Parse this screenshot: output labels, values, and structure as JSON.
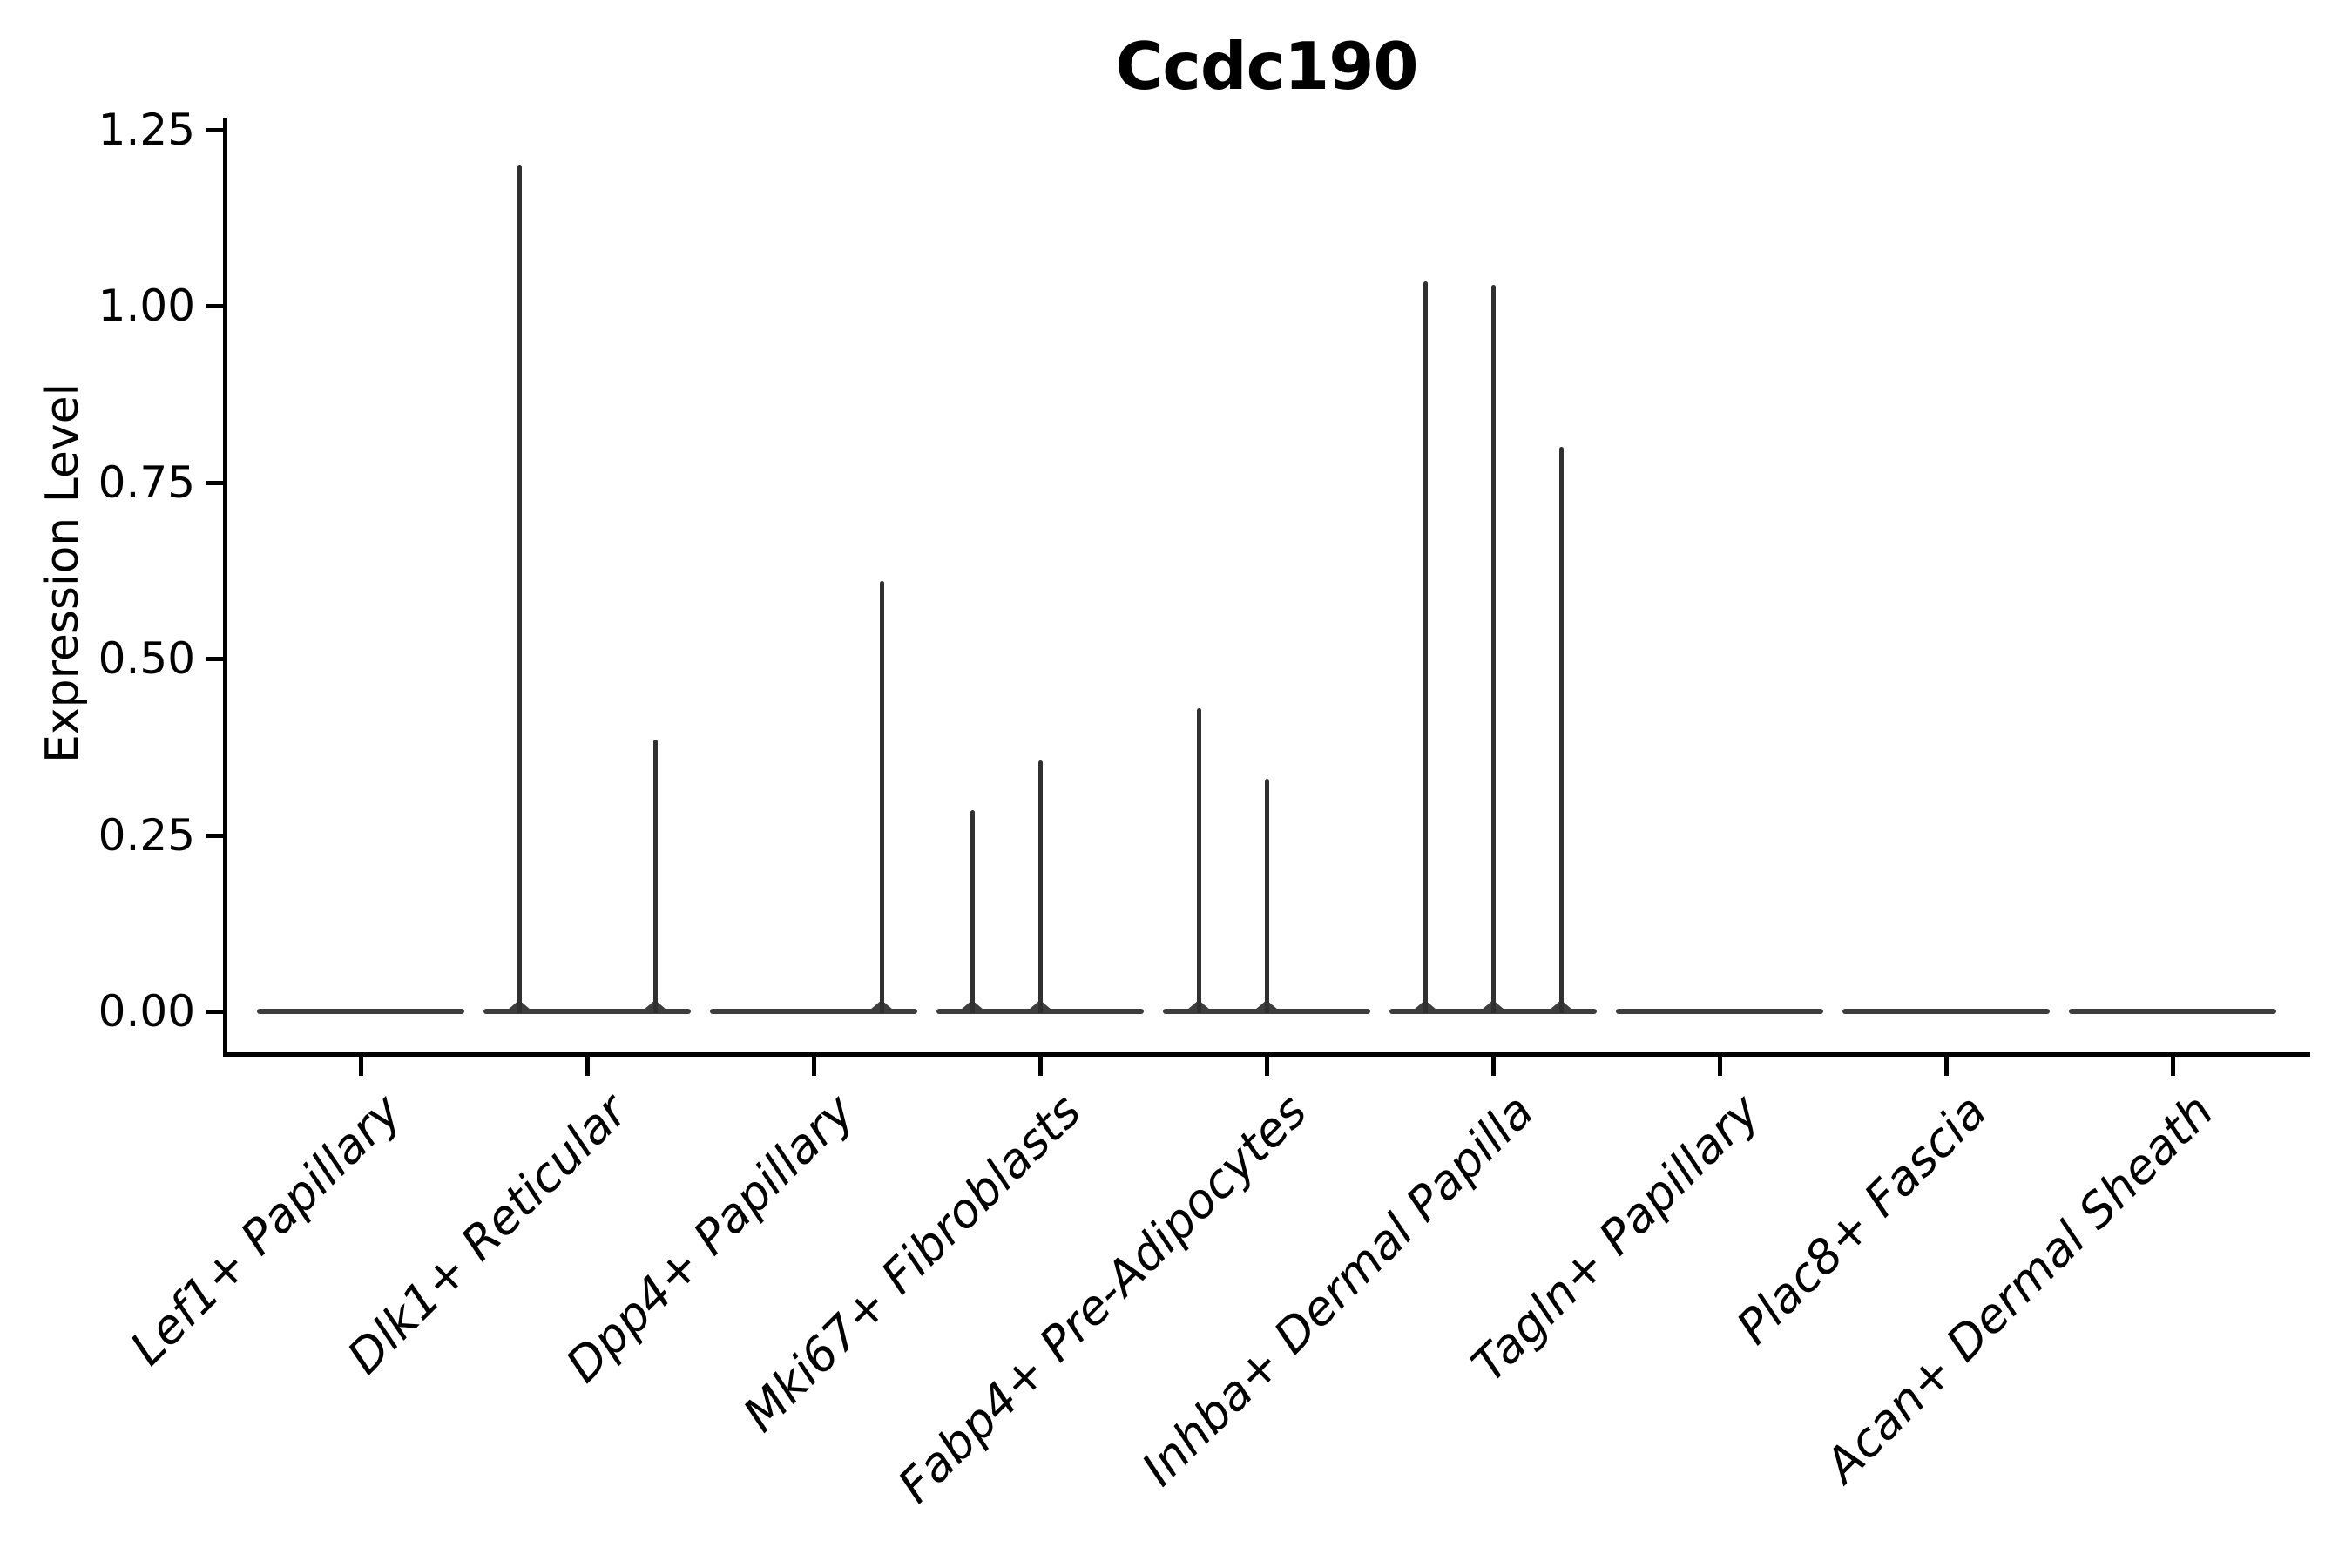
{
  "chart_data": {
    "type": "violin",
    "title": "Ccdc190",
    "ylabel": "Expression Level",
    "xlabel": "",
    "grid": false,
    "legend": null,
    "yticks": [
      0,
      0.25,
      0.5,
      0.75,
      1.0,
      1.25
    ],
    "ytick_labels": [
      "0.00",
      "0.25",
      "0.50",
      "0.75",
      "1.00",
      "1.25"
    ],
    "ylim": [
      0,
      1.27
    ],
    "categories": [
      "Lef1+ Papillary",
      "Dlk1+ Reticular",
      "Dpp4+ Papillary",
      "Mki67+ Fibroblasts",
      "Fabp4+ Pre-Adipocytes",
      "Inhba+ Dermal Papilla",
      "Tagln+ Papillary",
      "Plac8+ Fascia",
      "Acan+ Dermal Sheath"
    ],
    "baseline_value": 0,
    "violins": [
      {
        "category": "Lef1+ Papillary",
        "spikes": []
      },
      {
        "category": "Dlk1+ Reticular",
        "spikes": [
          {
            "slot": -1,
            "value": 1.2
          },
          {
            "slot": 1,
            "value": 0.385
          }
        ]
      },
      {
        "category": "Dpp4+ Papillary",
        "spikes": [
          {
            "slot": 1,
            "value": 0.61
          }
        ]
      },
      {
        "category": "Mki67+ Fibroblasts",
        "spikes": [
          {
            "slot": -1,
            "value": 0.285
          },
          {
            "slot": 0,
            "value": 0.355
          }
        ]
      },
      {
        "category": "Fabp4+ Pre-Adipocytes",
        "spikes": [
          {
            "slot": -1,
            "value": 0.43
          },
          {
            "slot": 0,
            "value": 0.33
          }
        ]
      },
      {
        "category": "Inhba+ Dermal Papilla",
        "spikes": [
          {
            "slot": -1,
            "value": 1.035
          },
          {
            "slot": 0,
            "value": 1.03
          },
          {
            "slot": 1,
            "value": 0.8
          }
        ]
      },
      {
        "category": "Tagln+ Papillary",
        "spikes": []
      },
      {
        "category": "Plac8+ Fascia",
        "spikes": []
      },
      {
        "category": "Acan+ Dermal Sheath",
        "spikes": []
      }
    ],
    "colors": {
      "background": "#ffffff",
      "axis": "#000000",
      "text": "#000000",
      "violin_line": "#303030",
      "baseline": "#3d3d3d"
    }
  }
}
